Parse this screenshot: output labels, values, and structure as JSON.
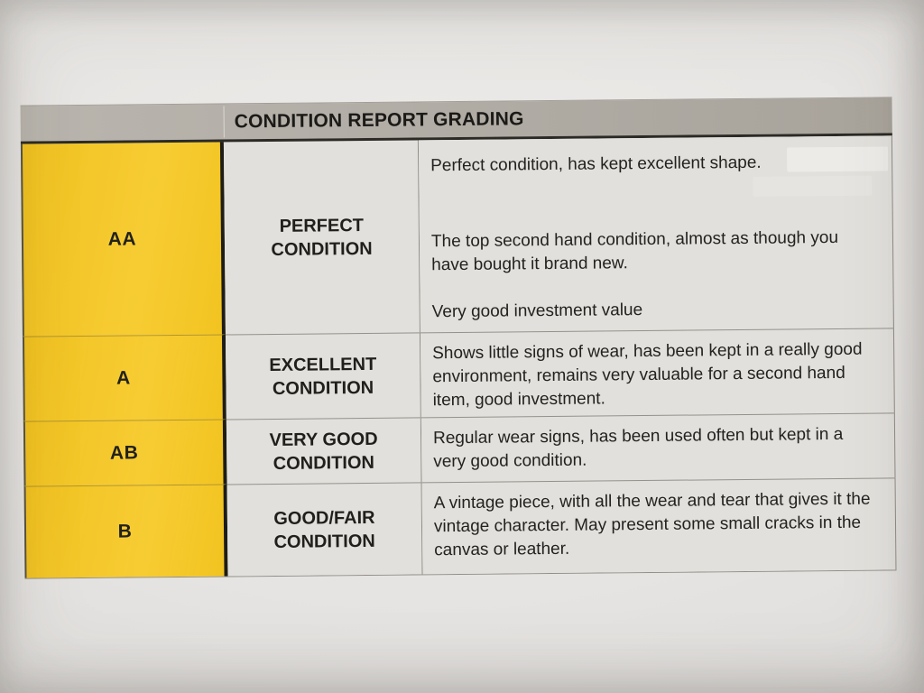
{
  "colors": {
    "paper": "#e7e5e3",
    "paper_edge": "#d3d1cf",
    "header_gray": "#b9b5ae",
    "header_gray_dark": "#a8a39b",
    "accent_yellow": "#f6c822",
    "cell_bg": "#e2e0dc",
    "text": "#232220",
    "border_dark": "#2b2a25",
    "border_light": "#918e87"
  },
  "document": {
    "table": {
      "title": "CONDITION REPORT GRADING",
      "rows": [
        {
          "code": "AA",
          "name": "PERFECT CONDITION",
          "description_paragraphs": [
            "Perfect condition, has kept excellent shape.",
            "The top second hand condition, almost as though you have bought it brand new.",
            "Very good investment value"
          ]
        },
        {
          "code": "A",
          "name": "EXCELLENT CONDITION",
          "description_paragraphs": [
            "Shows little signs of wear, has been kept in a really good environment, remains very valuable for a second hand item, good investment."
          ]
        },
        {
          "code": "AB",
          "name": "VERY GOOD CONDITION",
          "description_paragraphs": [
            "Regular wear signs, has been used often but kept in a very good condition."
          ]
        },
        {
          "code": "B",
          "name": "GOOD/FAIR CONDITION",
          "description_paragraphs": [
            "A vintage piece, with all the wear and tear that gives it the vintage character. May present some small cracks in the canvas or leather."
          ]
        }
      ]
    }
  }
}
